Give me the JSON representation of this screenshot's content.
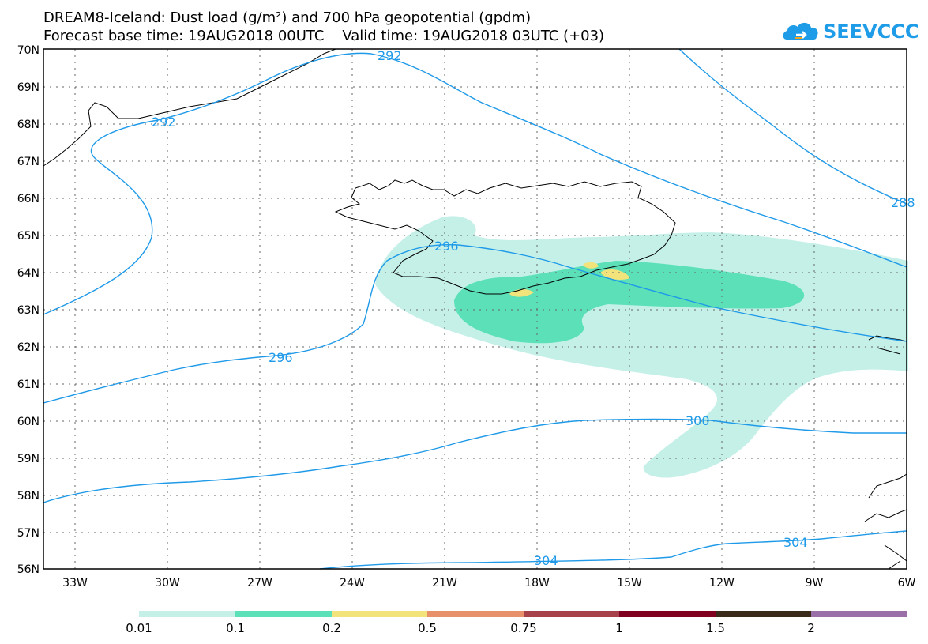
{
  "header": {
    "title_line1": "DREAM8-Iceland: Dust load (g/m²) and 700 hPa geopotential (gpdm)",
    "title_line2": "Forecast base time: 19AUG2018 00UTC    Valid time: 19AUG2018 03UTC (+03)"
  },
  "logo": {
    "text": "SEEVCCC",
    "icon": "cloud-logo-icon",
    "color": "#1e9ce8"
  },
  "map": {
    "lat_labels": [
      "70N",
      "69N",
      "68N",
      "67N",
      "66N",
      "65N",
      "64N",
      "63N",
      "62N",
      "61N",
      "60N",
      "59N",
      "58N",
      "57N",
      "56N"
    ],
    "lon_labels": [
      "33W",
      "30W",
      "27W",
      "24W",
      "21W",
      "18W",
      "15W",
      "12W",
      "9W",
      "6W"
    ],
    "contour_labels": [
      {
        "text": "292"
      },
      {
        "text": "292"
      },
      {
        "text": "288"
      },
      {
        "text": "296"
      },
      {
        "text": "296"
      },
      {
        "text": "300"
      },
      {
        "text": "304"
      },
      {
        "text": "304"
      }
    ],
    "colors": {
      "contour": "#1f9ae8",
      "coast": "#000000",
      "dust_level1": "#c4f0e8",
      "dust_level2": "#5ce0b8",
      "dust_level3": "#f2e37a"
    }
  },
  "legend": {
    "colors": [
      "#c4f0e8",
      "#5ce0b8",
      "#f2e37a",
      "#e8906a",
      "#a8424a",
      "#800020",
      "#3a2a1a",
      "#9b6fa8"
    ],
    "labels": [
      "0.01",
      "0.1",
      "0.2",
      "0.5",
      "0.75",
      "1",
      "1.5",
      "2"
    ]
  }
}
